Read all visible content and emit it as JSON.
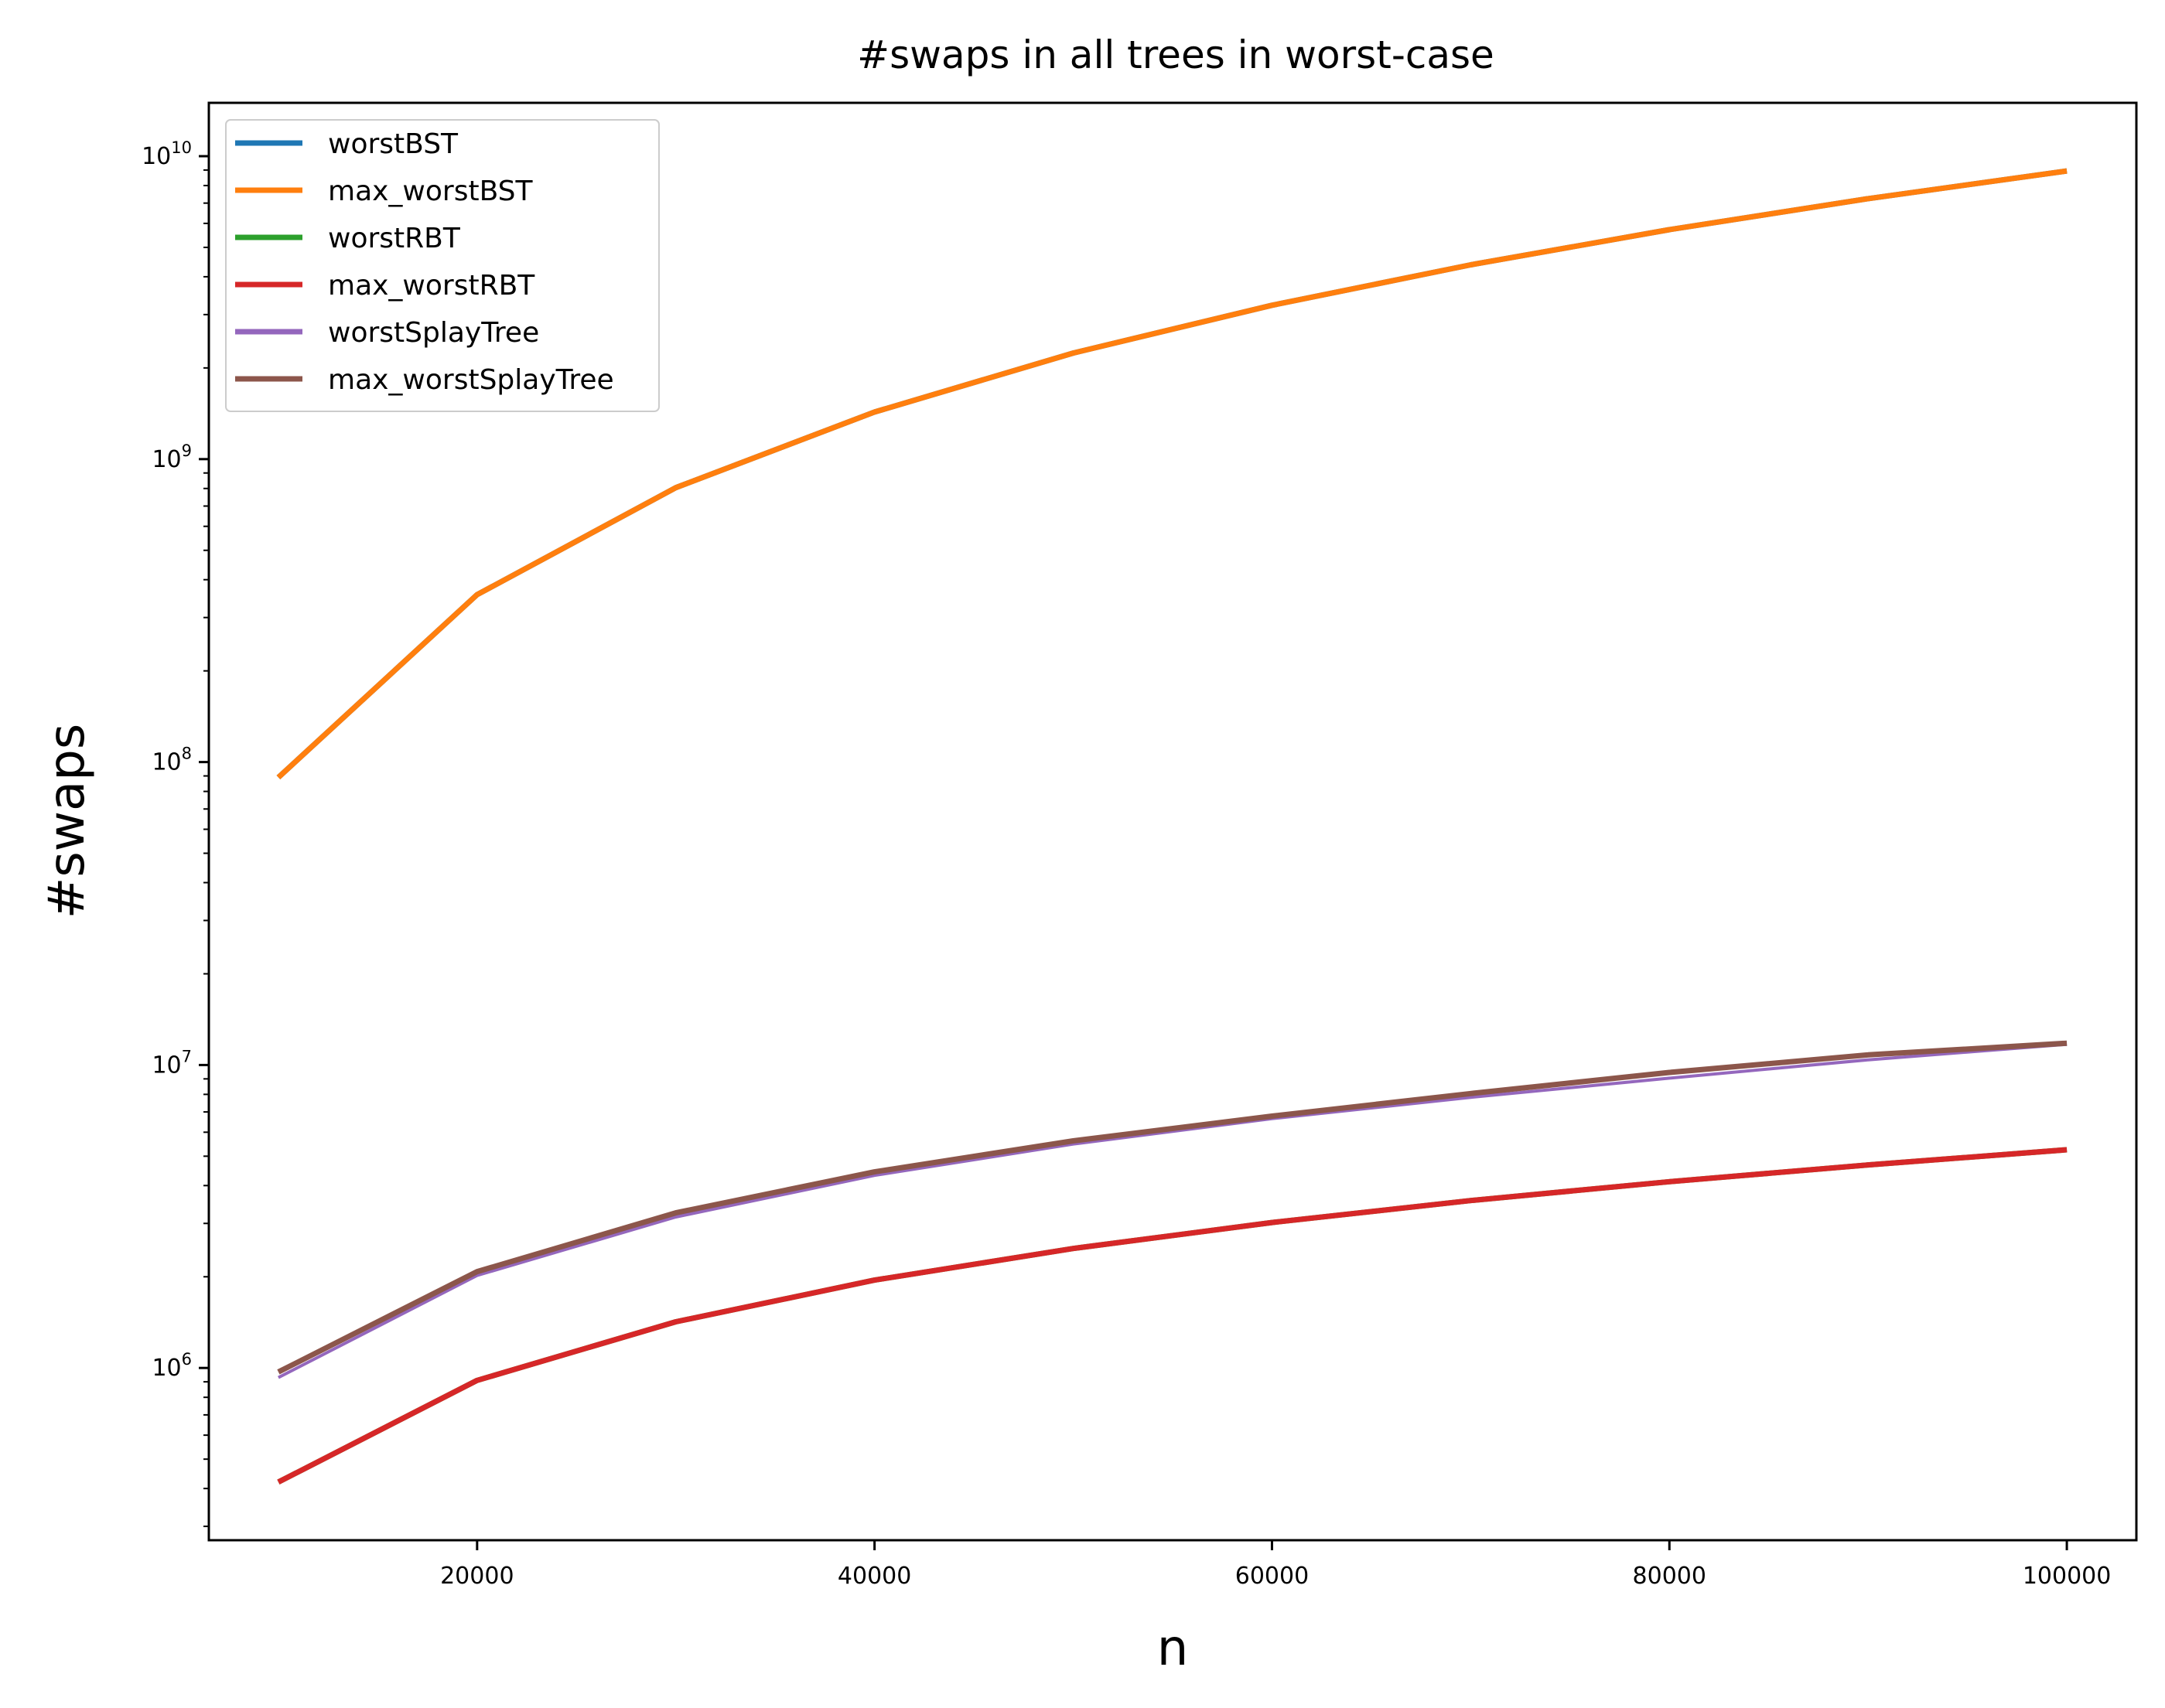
{
  "chart_data": {
    "type": "line",
    "title": "#swaps in all trees in worst-case",
    "xlabel": "n",
    "ylabel": "#swaps",
    "xlim": [
      6500,
      103500
    ],
    "ylim": [
      270000,
      15000000000
    ],
    "yscale": "log",
    "grid": false,
    "legend_position": "top-left",
    "x": [
      10000,
      20000,
      30000,
      40000,
      50000,
      60000,
      70000,
      80000,
      90000,
      100000
    ],
    "x_ticks": [
      {
        "value": 20000,
        "label": "20000"
      },
      {
        "value": 40000,
        "label": "40000"
      },
      {
        "value": 60000,
        "label": "60000"
      },
      {
        "value": 80000,
        "label": "80000"
      },
      {
        "value": 100000,
        "label": "100000"
      }
    ],
    "y_ticks": [
      {
        "value": 1000000,
        "base": "10",
        "exp": "6"
      },
      {
        "value": 10000000,
        "base": "10",
        "exp": "7"
      },
      {
        "value": 100000000,
        "base": "10",
        "exp": "8"
      },
      {
        "value": 1000000000,
        "base": "10",
        "exp": "9"
      },
      {
        "value": 10000000000,
        "base": "10",
        "exp": "10"
      }
    ],
    "series": [
      {
        "name": "worstBST",
        "color": "#1f77b4",
        "values": [
          89000000,
          357000000,
          805000000,
          1430000000,
          2240000000,
          3220000000,
          4380000000,
          5720000000,
          7240000000,
          8940000000
        ]
      },
      {
        "name": "max_worstBST",
        "color": "#ff7f0e",
        "values": [
          89000000,
          357000000,
          805000000,
          1430000000,
          2240000000,
          3220000000,
          4380000000,
          5720000000,
          7240000000,
          8940000000
        ]
      },
      {
        "name": "worstRBT",
        "color": "#2ca02c",
        "values": [
          420000,
          910000,
          1420000,
          1950000,
          2480000,
          3020000,
          3570000,
          4120000,
          4680000,
          5250000
        ]
      },
      {
        "name": "max_worstRBT",
        "color": "#d62728",
        "values": [
          420000,
          910000,
          1420000,
          1950000,
          2480000,
          3020000,
          3570000,
          4120000,
          4680000,
          5250000
        ]
      },
      {
        "name": "worstSplayTree",
        "color": "#9467bd",
        "values": [
          930000,
          2020000,
          3150000,
          4320000,
          5480000,
          6650000,
          7820000,
          9050000,
          10400000,
          11700000
        ]
      },
      {
        "name": "max_worstSplayTree",
        "color": "#8c564b",
        "values": [
          970000,
          2080000,
          3250000,
          4440000,
          5620000,
          6780000,
          8050000,
          9450000,
          10800000,
          11800000
        ]
      }
    ]
  }
}
